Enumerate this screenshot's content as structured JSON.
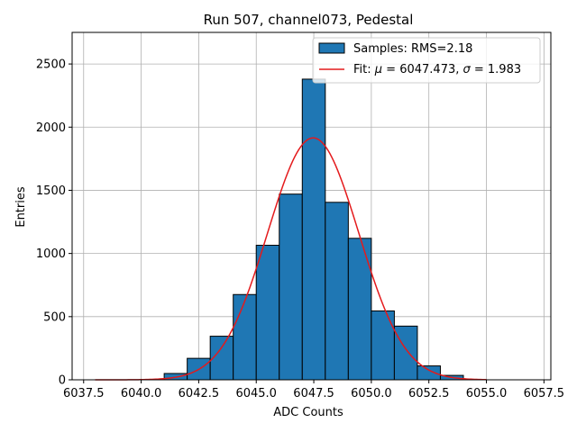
{
  "chart_data": {
    "type": "bar",
    "title": "Run 507, channel073, Pedestal",
    "xlabel": "ADC Counts",
    "ylabel": "Entries",
    "xlim": [
      6037.0,
      6057.8
    ],
    "ylim": [
      0,
      2750
    ],
    "xticks": [
      6037.5,
      6040.0,
      6042.5,
      6045.0,
      6047.5,
      6050.0,
      6052.5,
      6055.0,
      6057.5
    ],
    "xtick_labels": [
      "6037.5",
      "6040.0",
      "6042.5",
      "6045.0",
      "6047.5",
      "6050.0",
      "6052.5",
      "6055.0",
      "6057.5"
    ],
    "yticks": [
      0,
      500,
      1000,
      1500,
      2000,
      2500
    ],
    "ytick_labels": [
      "0",
      "500",
      "1000",
      "1500",
      "2000",
      "2500"
    ],
    "grid": true,
    "legend_position": "top-right",
    "series": [
      {
        "name": "Samples: RMS=2.18",
        "kind": "histogram",
        "color": "#1f77b4",
        "edgecolor": "#000000",
        "bin_edges": [
          6040,
          6041,
          6042,
          6043,
          6044,
          6045,
          6046,
          6047,
          6048,
          6049,
          6050,
          6051,
          6052,
          6053,
          6054
        ],
        "counts": [
          0,
          50,
          170,
          345,
          675,
          1065,
          1470,
          2380,
          1405,
          1120,
          545,
          425,
          110,
          35
        ]
      },
      {
        "name": "Fit: μ = 6047.473, σ = 1.983",
        "name_parts": [
          "Fit: ",
          "μ",
          " = 6047.473, ",
          "σ",
          " = 1.983"
        ],
        "kind": "gaussian",
        "color": "#e41a1c",
        "mu": 6047.473,
        "sigma": 1.983,
        "amplitude": 1915,
        "x_range": [
          6038,
          6055
        ]
      }
    ]
  }
}
